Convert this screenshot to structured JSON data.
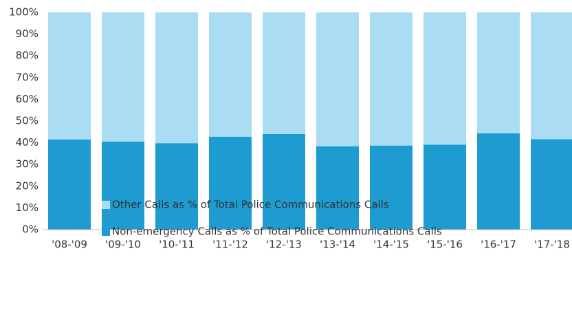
{
  "chart_data": {
    "type": "stacked_bar",
    "categories": [
      "'08-'09",
      "'09-'10",
      "'10-'11",
      "'11-'12",
      "'12-'13",
      "'13-'14",
      "'14-'15",
      "'15-'16",
      "'16-'17",
      "'17-'18"
    ],
    "series": [
      {
        "name": "Other Calls as % of Total Police Communications Calls",
        "color": "#aadcf3",
        "values": [
          58.5,
          59.5,
          60.2,
          57.2,
          56,
          61.7,
          61.3,
          60.9,
          55.7,
          58.4
        ]
      },
      {
        "name": "Non-emergency Calls as % of Total Police Communications Calls",
        "color": "#1e9bd0",
        "values": [
          41.5,
          40.5,
          39.8,
          42.8,
          44,
          38.3,
          38.7,
          39.1,
          44.3,
          41.6
        ]
      }
    ],
    "ylim": [
      0,
      100
    ],
    "yticks": [
      {
        "value": 0,
        "label": "0%"
      },
      {
        "value": 10,
        "label": "10%"
      },
      {
        "value": 20,
        "label": "20%"
      },
      {
        "value": 30,
        "label": "30%"
      },
      {
        "value": 40,
        "label": "40%"
      },
      {
        "value": 50,
        "label": "50%"
      },
      {
        "value": 60,
        "label": "60%"
      },
      {
        "value": 70,
        "label": "70%"
      },
      {
        "value": 80,
        "label": "80%"
      },
      {
        "value": 90,
        "label": "90%"
      },
      {
        "value": 100,
        "label": "100%"
      }
    ]
  }
}
